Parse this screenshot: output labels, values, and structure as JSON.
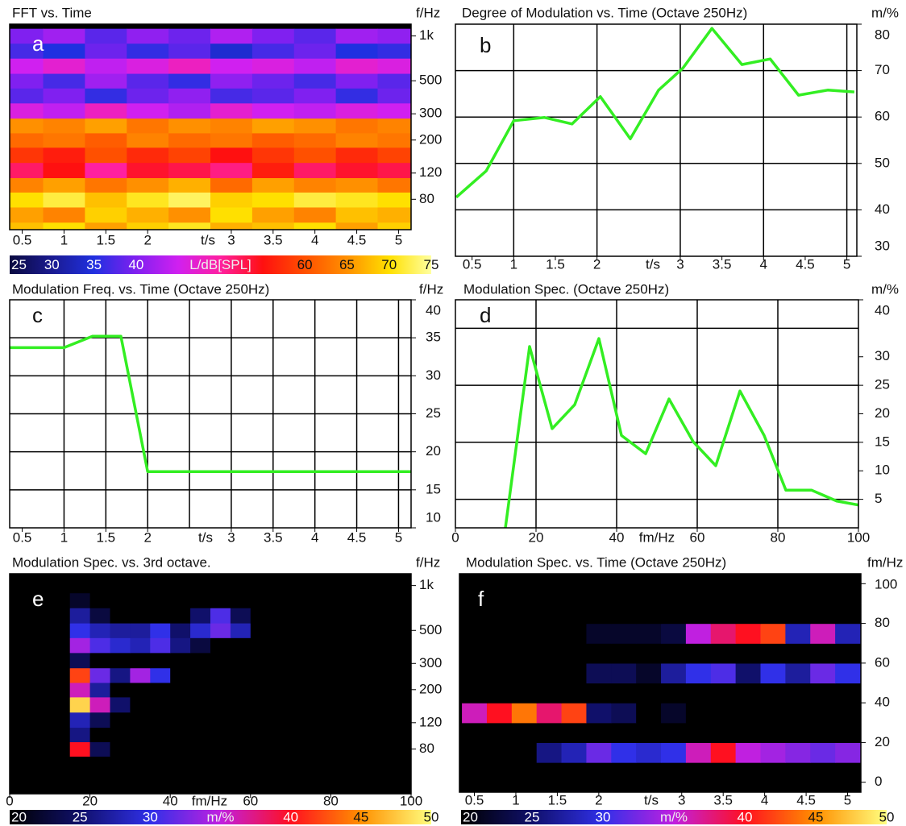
{
  "chart_data": [
    {
      "type": "heatmap",
      "title": "FFT vs. Time",
      "panel": "a",
      "x_label": "t/s",
      "y_label": "f/Hz",
      "x": [
        0.5,
        1,
        1.5,
        2,
        2.5,
        3,
        3.5,
        4,
        4.5,
        5
      ],
      "y": [
        50,
        63,
        80,
        100,
        125,
        160,
        200,
        250,
        315,
        400,
        500,
        630,
        800,
        1000
      ],
      "values": [
        [
          68,
          70,
          66,
          69,
          71,
          67,
          68,
          70,
          66,
          69
        ],
        [
          66,
          64,
          69,
          67,
          65,
          70,
          66,
          64,
          68,
          67
        ],
        [
          70,
          72,
          68,
          71,
          73,
          69,
          70,
          72,
          71,
          70
        ],
        [
          64,
          66,
          63,
          65,
          67,
          62,
          66,
          64,
          65,
          63
        ],
        [
          52,
          55,
          50,
          54,
          53,
          51,
          56,
          52,
          54,
          53
        ],
        [
          58,
          56,
          60,
          57,
          59,
          55,
          58,
          60,
          57,
          59
        ],
        [
          62,
          63,
          61,
          64,
          62,
          63,
          61,
          62,
          64,
          63
        ],
        [
          65,
          64,
          66,
          63,
          65,
          64,
          66,
          65,
          63,
          64
        ],
        [
          46,
          44,
          48,
          45,
          43,
          47,
          45,
          44,
          46,
          45
        ],
        [
          38,
          40,
          36,
          39,
          41,
          37,
          38,
          40,
          36,
          39
        ],
        [
          40,
          37,
          42,
          38,
          36,
          41,
          39,
          37,
          40,
          38
        ],
        [
          45,
          47,
          44,
          46,
          48,
          45,
          46,
          44,
          47,
          46
        ],
        [
          37,
          35,
          39,
          36,
          38,
          34,
          37,
          39,
          35,
          36
        ],
        [
          40,
          42,
          38,
          41,
          39,
          43,
          40,
          38,
          42,
          41
        ]
      ],
      "xlim": [
        0.35,
        5.15
      ],
      "ylim": [
        50,
        1200
      ],
      "y_scale": "log",
      "xticks": [
        0.5,
        1,
        1.5,
        2,
        3,
        3.5,
        4,
        4.5,
        5
      ],
      "yticks": [
        80,
        120,
        200,
        300,
        500,
        {
          "value": 1000,
          "label": "1k"
        }
      ],
      "clim": [
        25,
        75
      ],
      "colormap": [
        "#0a0a40",
        "#1a1a90",
        "#2030e0",
        "#8020f0",
        "#d020f0",
        "#ff20a0",
        "#ff1010",
        "#ff5000",
        "#ff9000",
        "#ffe000",
        "#ffffa0"
      ],
      "colorbar": {
        "label": "L/dB[SPL]",
        "ticks": [
          25,
          30,
          35,
          40,
          60,
          65,
          70,
          75
        ]
      }
    },
    {
      "type": "line",
      "title": "Degree of Modulation vs. Time (Octave 250Hz)",
      "panel": "b",
      "x_label": "t/s",
      "y_label": "m/%",
      "x": [
        0.31,
        0.67,
        1.0,
        1.37,
        1.7,
        2.04,
        2.4,
        2.74,
        3.03,
        3.38,
        3.74,
        4.08,
        4.42,
        4.77,
        5.09
      ],
      "values": [
        42.7,
        48.4,
        59.2,
        59.9,
        58.5,
        64.4,
        55.3,
        65.8,
        70.5,
        79.1,
        71.3,
        72.5,
        64.7,
        65.8,
        65.4
      ],
      "color": "#33ee22",
      "xlim": [
        0.3,
        5.12
      ],
      "ylim": [
        30,
        80
      ],
      "xticks": [
        0.5,
        1,
        1.5,
        2,
        3,
        3.5,
        4,
        4.5,
        5
      ],
      "yticks": [
        30,
        40,
        50,
        60,
        70,
        80
      ],
      "xgrid": [
        1,
        2,
        3,
        4,
        5
      ],
      "ygrid": [
        40,
        50,
        60,
        70
      ]
    },
    {
      "type": "line",
      "title": "Modulation Freq. vs. Time (Octave 250Hz)",
      "panel": "c",
      "x_label": "t/s",
      "y_label": "f/Hz",
      "x": [
        0.35,
        1.0,
        1.34,
        1.68,
        2.0,
        5.15
      ],
      "values": [
        33.7,
        33.7,
        35.2,
        35.2,
        17.4,
        17.4
      ],
      "color": "#33ee22",
      "xlim": [
        0.35,
        5.15
      ],
      "ylim": [
        10,
        40
      ],
      "xticks": [
        0.5,
        1,
        1.5,
        2,
        3,
        3.5,
        4,
        4.5,
        5
      ],
      "yticks": [
        10,
        15,
        20,
        25,
        30,
        35,
        40
      ],
      "xgrid": [
        1,
        1.5,
        2,
        2.5,
        3,
        3.5,
        4,
        4.5,
        5
      ],
      "ygrid": [
        15,
        20,
        25,
        30,
        35
      ]
    },
    {
      "type": "line",
      "title": "Modulation Spec. (Octave 250Hz)",
      "panel": "d",
      "x_label": "fm/Hz",
      "y_label": "m/%",
      "x": [
        12.4,
        18.4,
        24,
        29.6,
        35.6,
        41.2,
        47.2,
        53,
        59,
        64.6,
        70.6,
        76.6,
        82,
        88.4,
        94.6,
        100
      ],
      "values": [
        0,
        31.8,
        17.4,
        21.6,
        33.2,
        16.2,
        13,
        22.6,
        15.1,
        10.9,
        24,
        16.2,
        6.6,
        6.6,
        4.7,
        4
      ],
      "color": "#33ee22",
      "xlim": [
        0,
        100
      ],
      "ylim": [
        0,
        40
      ],
      "xticks": [
        0,
        20,
        40,
        60,
        80,
        100
      ],
      "yticks": [
        5,
        10,
        15,
        20,
        25,
        30,
        40
      ],
      "xgrid": [
        20,
        40,
        60,
        80
      ],
      "ygrid": [
        5,
        15,
        25,
        35
      ]
    },
    {
      "type": "heatmap",
      "title": "Modulation Spec. vs. 3rd octave.",
      "panel": "e",
      "x_label": "fm/Hz",
      "y_label": "f/Hz",
      "x": [
        2.5,
        7.5,
        12.5,
        17.5,
        22.5,
        27.5,
        32.5,
        37.5,
        42.5,
        47.5,
        52.5,
        57.5,
        62.5,
        67.5,
        72.5,
        77.5,
        82.5,
        87.5,
        92.5,
        97.5
      ],
      "y": [
        80,
        100,
        125,
        160,
        200,
        250,
        315,
        400,
        500,
        630,
        800,
        1000
      ],
      "values": [
        [
          20,
          20,
          20,
          40,
          24,
          20,
          20,
          20,
          20,
          20,
          20,
          20,
          20,
          20,
          20,
          20,
          20,
          20,
          20,
          20
        ],
        [
          20,
          20,
          20,
          26,
          20,
          20,
          20,
          20,
          20,
          20,
          20,
          20,
          20,
          20,
          20,
          20,
          20,
          20,
          20,
          20
        ],
        [
          20,
          20,
          20,
          28,
          24,
          20,
          20,
          20,
          20,
          20,
          20,
          20,
          20,
          20,
          20,
          20,
          20,
          20,
          20,
          20
        ],
        [
          20,
          20,
          20,
          48,
          36,
          25,
          20,
          20,
          20,
          20,
          20,
          20,
          20,
          20,
          20,
          20,
          20,
          20,
          20,
          20
        ],
        [
          20,
          20,
          20,
          36,
          27,
          20,
          20,
          20,
          20,
          20,
          20,
          20,
          20,
          20,
          20,
          20,
          20,
          20,
          20,
          20
        ],
        [
          20,
          20,
          20,
          42,
          32,
          26,
          34,
          30,
          20,
          20,
          20,
          20,
          20,
          20,
          20,
          20,
          20,
          20,
          20,
          20
        ],
        [
          20,
          20,
          20,
          24,
          20,
          20,
          20,
          20,
          20,
          20,
          20,
          20,
          20,
          20,
          20,
          20,
          20,
          20,
          20,
          20
        ],
        [
          20,
          20,
          20,
          34,
          31,
          29,
          28,
          31,
          26,
          23,
          20,
          20,
          20,
          20,
          20,
          20,
          20,
          20,
          20,
          20
        ],
        [
          20,
          20,
          20,
          30,
          28,
          27,
          27,
          30,
          25,
          29,
          32,
          28,
          20,
          20,
          20,
          20,
          20,
          20,
          20,
          20
        ],
        [
          20,
          20,
          20,
          27,
          23,
          20,
          20,
          20,
          20,
          25,
          31,
          24,
          20,
          20,
          20,
          20,
          20,
          20,
          20,
          20
        ],
        [
          20,
          20,
          20,
          22,
          20,
          20,
          20,
          20,
          20,
          20,
          20,
          20,
          20,
          20,
          20,
          20,
          20,
          20,
          20,
          20
        ],
        [
          20,
          20,
          20,
          20,
          20,
          20,
          20,
          20,
          20,
          20,
          20,
          20,
          20,
          20,
          20,
          20,
          20,
          20,
          20,
          20
        ]
      ],
      "xlim": [
        0,
        100
      ],
      "ylim": [
        40,
        1200
      ],
      "y_scale": "log",
      "xticks": [
        0,
        20,
        40,
        60,
        80,
        100
      ],
      "yticks": [
        80,
        120,
        200,
        300,
        500,
        {
          "value": 1000,
          "label": "1k"
        }
      ],
      "clim": [
        20,
        50
      ],
      "colormap": [
        "#000000",
        "#10106a",
        "#3030e8",
        "#c020e0",
        "#ff1020",
        "#ff9000",
        "#ffff80"
      ],
      "colorbar": {
        "label": "m/%",
        "ticks": [
          20,
          25,
          30,
          40,
          45,
          50
        ]
      }
    },
    {
      "type": "heatmap",
      "title": "Modulation Spec. vs. Time (Octave 250Hz)",
      "panel": "f",
      "x_label": "t/s",
      "y_label": "fm/Hz",
      "x": [
        0.5,
        0.8,
        1.1,
        1.4,
        1.7,
        2,
        2.3,
        2.6,
        2.9,
        3.2,
        3.5,
        3.8,
        4.1,
        4.4,
        4.7,
        5
      ],
      "y": [
        5,
        15,
        25,
        35,
        45,
        55,
        65,
        75,
        85,
        95
      ],
      "values": [
        [
          20,
          20,
          20,
          20,
          20,
          20,
          20,
          20,
          20,
          20,
          20,
          20,
          20,
          20,
          20,
          20
        ],
        [
          20,
          20,
          20,
          26,
          28,
          32,
          30,
          29,
          30,
          36,
          40,
          35,
          34,
          33,
          32,
          33
        ],
        [
          20,
          20,
          20,
          20,
          20,
          20,
          20,
          20,
          20,
          20,
          20,
          20,
          20,
          20,
          20,
          20
        ],
        [
          36,
          40,
          44,
          38,
          42,
          25,
          24,
          20,
          22,
          20,
          20,
          20,
          20,
          20,
          20,
          20
        ],
        [
          20,
          20,
          20,
          20,
          20,
          20,
          20,
          20,
          20,
          20,
          20,
          20,
          20,
          20,
          20,
          20
        ],
        [
          20,
          20,
          20,
          20,
          20,
          24,
          24,
          22,
          27,
          30,
          31,
          25,
          30,
          27,
          32,
          30
        ],
        [
          20,
          20,
          20,
          20,
          20,
          20,
          20,
          20,
          20,
          20,
          20,
          20,
          20,
          20,
          20,
          20
        ],
        [
          20,
          20,
          20,
          20,
          20,
          22,
          22,
          22,
          23,
          35,
          38,
          40,
          42,
          28,
          36,
          28
        ],
        [
          20,
          20,
          20,
          20,
          20,
          20,
          20,
          20,
          20,
          20,
          20,
          20,
          20,
          20,
          20,
          20
        ],
        [
          20,
          20,
          20,
          20,
          20,
          20,
          20,
          20,
          20,
          20,
          20,
          20,
          20,
          20,
          20,
          20
        ]
      ],
      "xlim": [
        0.32,
        5.16
      ],
      "ylim": [
        -5,
        105
      ],
      "xticks": [
        0.5,
        1,
        1.5,
        2,
        3,
        3.5,
        4,
        4.5,
        5
      ],
      "yticks": [
        0,
        20,
        40,
        60,
        80,
        100
      ],
      "clim": [
        20,
        50
      ],
      "colormap": [
        "#000000",
        "#10106a",
        "#3030e8",
        "#c020e0",
        "#ff1020",
        "#ff9000",
        "#ffff80"
      ],
      "colorbar": {
        "label": "m/%",
        "ticks": [
          20,
          25,
          30,
          40,
          45,
          50
        ]
      }
    }
  ]
}
